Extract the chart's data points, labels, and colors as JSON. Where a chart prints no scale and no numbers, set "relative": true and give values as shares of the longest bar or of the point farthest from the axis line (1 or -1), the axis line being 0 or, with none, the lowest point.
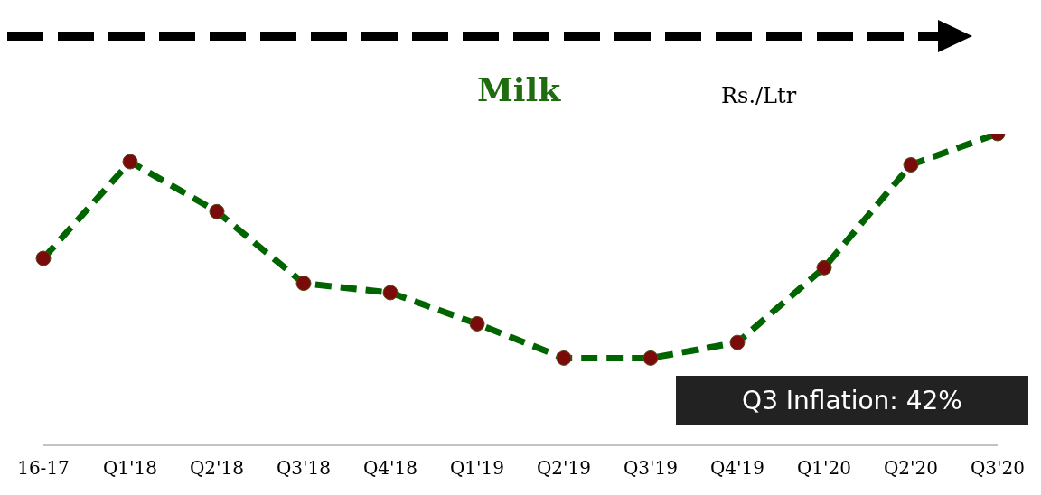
{
  "chart_data": {
    "type": "line",
    "title": "Milk",
    "ylabel": "Rs./Ltr",
    "relative": true,
    "categories": [
      "16-17",
      "Q1'18",
      "Q2'18",
      "Q3'18",
      "Q4'18",
      "Q1'19",
      "Q2'19",
      "Q3'19",
      "Q4'19",
      "Q1'20",
      "Q2'20",
      "Q3'20"
    ],
    "series": [
      {
        "color": "#006400",
        "values": [
          0.6,
          0.91,
          0.75,
          0.52,
          0.49,
          0.39,
          0.28,
          0.28,
          0.33,
          0.57,
          0.9,
          1
        ]
      }
    ],
    "marker": "circle",
    "line_style": "dashed",
    "annotations": [
      "Q3 Inflation: 42%"
    ]
  }
}
